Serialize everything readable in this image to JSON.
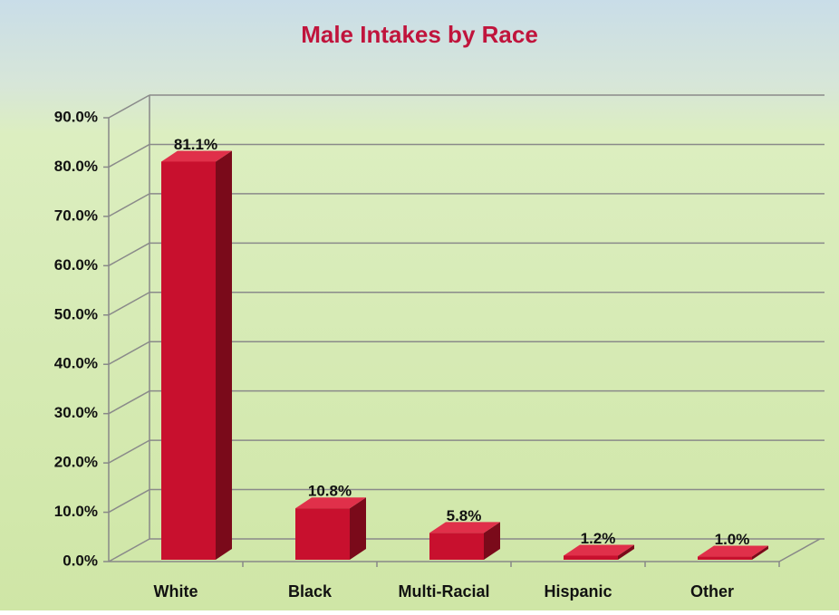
{
  "chart_data": {
    "type": "bar3d",
    "title": "Male Intakes by Race",
    "categories": [
      "White",
      "Black",
      "Multi-Racial",
      "Hispanic",
      "Other"
    ],
    "values": [
      81.1,
      10.8,
      5.8,
      1.2,
      1.0
    ],
    "value_labels": [
      "81.1%",
      "10.8%",
      "5.8%",
      "1.2%",
      "1.0%"
    ],
    "color": "#c8102e",
    "ylim": [
      0,
      90
    ],
    "yticks": [
      {
        "value": 0,
        "label": "0.0%"
      },
      {
        "value": 10,
        "label": "10.0%"
      },
      {
        "value": 20,
        "label": "20.0%"
      },
      {
        "value": 30,
        "label": "30.0%"
      },
      {
        "value": 40,
        "label": "40.0%"
      },
      {
        "value": 50,
        "label": "50.0%"
      },
      {
        "value": 60,
        "label": "60.0%"
      },
      {
        "value": 70,
        "label": "70.0%"
      },
      {
        "value": 80,
        "label": "80.0%"
      },
      {
        "value": 90,
        "label": "90.0%"
      }
    ],
    "grid": true
  }
}
